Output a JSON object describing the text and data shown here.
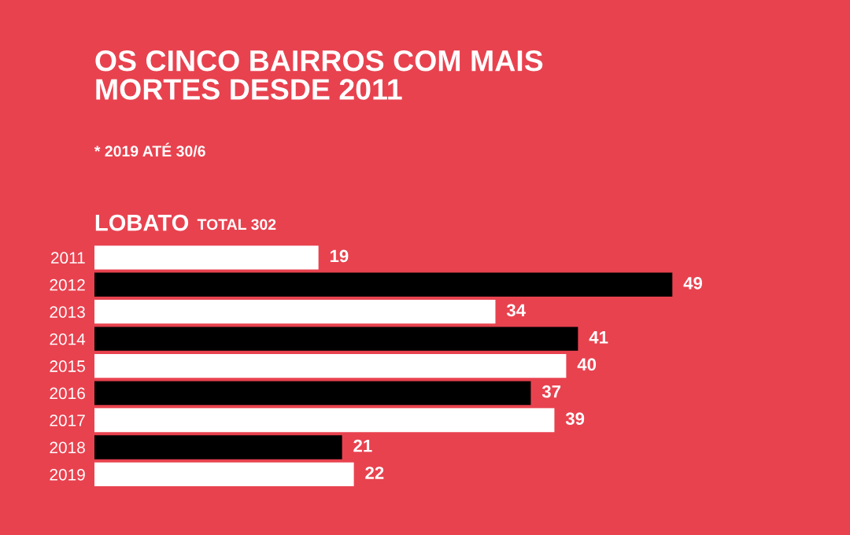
{
  "chart_data": {
    "type": "bar",
    "orientation": "horizontal",
    "title": "OS CINCO BAIRROS COM MAIS\nMORTES DESDE 2011",
    "subtitle": "* 2019 ATÉ 30/6",
    "annotations": [
      "LOBATO",
      "TOTAL 302"
    ],
    "categories": [
      "2011",
      "2012",
      "2013",
      "2014",
      "2015",
      "2016",
      "2017",
      "2018",
      "2019"
    ],
    "values": [
      19,
      49,
      34,
      41,
      40,
      37,
      39,
      21,
      22
    ],
    "colors": [
      "#ffffff",
      "#000000",
      "#ffffff",
      "#000000",
      "#ffffff",
      "#000000",
      "#ffffff",
      "#000000",
      "#ffffff"
    ],
    "data_labels": true,
    "grid": false,
    "legend": false
  }
}
